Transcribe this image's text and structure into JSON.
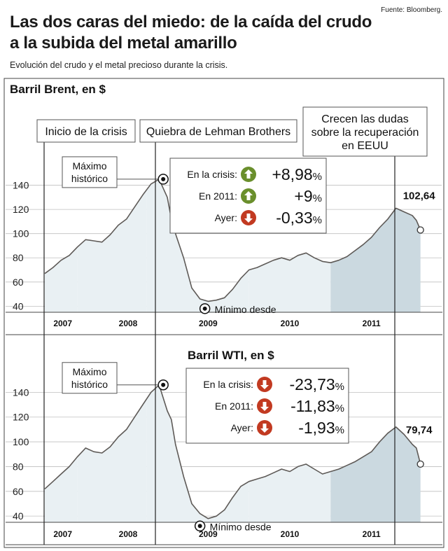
{
  "header": {
    "source": "Fuente: Bloomberg.",
    "title_line1": "Las dos caras del miedo: de la caída del crudo",
    "title_line2": "a la subida del metal amarillo",
    "subtitle": "Evolución del crudo y el metal precioso durante la crisis."
  },
  "events": {
    "crisis_start": "Inicio de la crisis",
    "lehman": "Quiebra de Lehman Brothers",
    "doubts_line1": "Crecen las dudas",
    "doubts_line2": "sobre la recuperación",
    "doubts_line3": "en EEUU"
  },
  "colors": {
    "line": "#5e5a57",
    "fill_light": "#e9f0f3",
    "fill_dark": "#cbd9e0",
    "up_arrow": "#6a8f2c",
    "down_arrow": "#c23a21",
    "frame": "#444444"
  },
  "chart_data": [
    {
      "type": "area",
      "title": "Barril Brent, en $",
      "x_labels": [
        "2007",
        "2008",
        "2009",
        "2010",
        "2011"
      ],
      "x": [
        2007.0,
        2007.1,
        2007.2,
        2007.3,
        2007.4,
        2007.5,
        2007.6,
        2007.7,
        2007.8,
        2007.9,
        2008.0,
        2008.1,
        2008.2,
        2008.3,
        2008.4,
        2008.5,
        2008.55,
        2008.6,
        2008.7,
        2008.8,
        2008.9,
        2009.0,
        2009.1,
        2009.2,
        2009.3,
        2009.4,
        2009.5,
        2009.6,
        2009.7,
        2009.8,
        2009.9,
        2010.0,
        2010.1,
        2010.2,
        2010.3,
        2010.4,
        2010.5,
        2010.6,
        2010.7,
        2010.8,
        2010.9,
        2011.0,
        2011.1,
        2011.2,
        2011.3,
        2011.4,
        2011.5,
        2011.55,
        2011.6
      ],
      "y": [
        67,
        72,
        78,
        82,
        89,
        95,
        94,
        93,
        99,
        107,
        112,
        122,
        132,
        141,
        145,
        130,
        112,
        100,
        80,
        55,
        46,
        44,
        45,
        47,
        54,
        63,
        70,
        72,
        75,
        78,
        80,
        78,
        82,
        84,
        80,
        77,
        76,
        78,
        81,
        86,
        91,
        97,
        105,
        112,
        121,
        118,
        115,
        111,
        103
      ],
      "ylim": [
        35,
        160
      ],
      "yticks": [
        40,
        60,
        80,
        100,
        120,
        140
      ],
      "last_value": "102,64",
      "max_label_line1": "Máximo",
      "max_label_line2": "histórico",
      "min_label": "Mínimo desde",
      "max_point": [
        2008.45,
        145
      ],
      "min_point": [
        2008.96,
        38
      ],
      "stats": [
        {
          "label": "En la crisis:",
          "value": "+8,98",
          "unit": "%",
          "direction": "up"
        },
        {
          "label": "En 2011:",
          "value": "+9",
          "unit": "%",
          "direction": "up"
        },
        {
          "label": "Ayer:",
          "value": "-0,33",
          "unit": "%",
          "direction": "down"
        }
      ]
    },
    {
      "type": "area",
      "title": "Barril WTI, en $",
      "x_labels": [
        "2007",
        "2008",
        "2009",
        "2010",
        "2011"
      ],
      "x": [
        2007.0,
        2007.1,
        2007.2,
        2007.3,
        2007.4,
        2007.5,
        2007.6,
        2007.7,
        2007.8,
        2007.9,
        2008.0,
        2008.1,
        2008.2,
        2008.3,
        2008.4,
        2008.5,
        2008.55,
        2008.6,
        2008.7,
        2008.8,
        2008.9,
        2009.0,
        2009.1,
        2009.2,
        2009.3,
        2009.4,
        2009.5,
        2009.6,
        2009.7,
        2009.8,
        2009.9,
        2010.0,
        2010.1,
        2010.2,
        2010.3,
        2010.4,
        2010.5,
        2010.6,
        2010.7,
        2010.8,
        2010.9,
        2011.0,
        2011.1,
        2011.2,
        2011.3,
        2011.4,
        2011.5,
        2011.55,
        2011.6
      ],
      "y": [
        62,
        68,
        74,
        80,
        88,
        95,
        92,
        91,
        96,
        104,
        110,
        120,
        130,
        140,
        146,
        125,
        118,
        98,
        72,
        50,
        42,
        38,
        40,
        45,
        55,
        64,
        68,
        70,
        72,
        75,
        78,
        76,
        80,
        82,
        78,
        74,
        76,
        78,
        81,
        84,
        88,
        92,
        100,
        107,
        112,
        106,
        98,
        95,
        82
      ],
      "ylim": [
        35,
        160
      ],
      "yticks": [
        40,
        60,
        80,
        100,
        120,
        140
      ],
      "last_value": "79,74",
      "max_label_line1": "Máximo",
      "max_label_line2": "histórico",
      "min_label": "Mínimo desde",
      "max_point": [
        2008.45,
        146
      ],
      "min_point": [
        2008.9,
        32
      ],
      "stats": [
        {
          "label": "En la crisis:",
          "value": "-23,73",
          "unit": "%",
          "direction": "down"
        },
        {
          "label": "En 2011:",
          "value": "-11,83",
          "unit": "%",
          "direction": "down"
        },
        {
          "label": "Ayer:",
          "value": "-1,93",
          "unit": "%",
          "direction": "down"
        }
      ]
    }
  ]
}
